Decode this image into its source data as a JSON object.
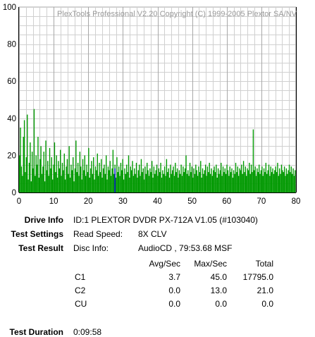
{
  "app": {
    "copyright": "PlexTools Professional V2.20 Copyright (C) 1999-2005 Plextor SA/NV"
  },
  "chart_data": {
    "type": "bar",
    "xlim": [
      0,
      80
    ],
    "ylim": [
      0,
      100
    ],
    "x_ticks": [
      0,
      10,
      20,
      30,
      40,
      50,
      60,
      70,
      80
    ],
    "y_ticks": [
      0,
      20,
      40,
      60,
      80,
      100
    ],
    "grid": true,
    "series": [
      {
        "color": "#009900",
        "values": [
          20,
          35,
          14,
          9,
          30,
          39,
          11,
          19,
          42,
          7,
          16,
          27,
          6,
          22,
          13,
          45,
          9,
          20,
          15,
          30,
          8,
          18,
          25,
          10,
          14,
          22,
          6,
          28,
          12,
          17,
          9,
          24,
          13,
          19,
          7,
          15,
          27,
          11,
          20,
          8,
          17,
          13,
          23,
          9,
          16,
          12,
          21,
          7,
          14,
          18,
          10,
          25,
          8,
          15,
          12,
          19,
          6,
          13,
          28,
          11,
          16,
          9,
          22,
          14,
          7,
          18,
          12,
          20,
          9,
          15,
          11,
          24,
          8,
          13,
          17,
          10,
          19,
          7,
          14,
          12,
          21,
          9,
          16,
          11,
          18,
          8,
          13,
          15,
          10,
          20,
          7,
          14,
          12,
          17,
          9,
          13,
          23,
          10,
          15,
          8,
          19,
          11,
          14,
          9,
          16,
          12,
          18,
          7,
          13,
          10,
          15,
          11,
          20,
          8,
          14,
          12,
          17,
          9,
          13,
          10,
          16,
          8,
          12,
          15,
          9,
          18,
          11,
          13,
          7,
          14,
          10,
          16,
          12,
          9,
          13,
          11,
          17,
          8,
          14,
          10,
          12,
          15,
          9,
          13,
          11,
          16,
          8,
          12,
          10,
          14,
          9,
          18,
          11,
          13,
          8,
          15,
          10,
          12,
          14,
          9,
          16,
          11,
          13,
          8,
          12,
          10,
          15,
          9,
          14,
          11,
          13,
          20,
          10,
          12,
          9,
          16,
          11,
          14,
          8,
          13,
          10,
          15,
          12,
          9,
          14,
          11,
          17,
          8,
          13,
          10,
          12,
          15,
          9,
          14,
          11,
          16,
          10,
          13,
          9,
          12,
          14,
          11,
          15,
          8,
          13,
          10,
          12,
          16,
          9,
          14,
          11,
          13,
          10,
          15,
          12,
          9,
          14,
          11,
          13,
          8,
          12,
          10,
          16,
          11,
          14,
          9,
          13,
          12,
          15,
          10,
          17,
          11,
          14,
          9,
          13,
          12,
          16,
          10,
          15,
          11,
          34,
          12,
          14,
          9,
          13,
          11,
          15,
          10,
          12,
          14,
          9,
          13,
          11,
          16,
          10,
          12,
          15,
          9,
          14,
          11,
          13,
          10,
          12,
          14,
          11,
          16,
          9,
          13,
          10,
          15,
          12,
          11,
          14,
          9,
          13,
          10,
          12,
          15,
          11,
          14,
          10,
          13,
          9,
          12
        ]
      },
      {
        "color": "#0000dd",
        "values": [
          0,
          0,
          0,
          0,
          0,
          0,
          0,
          0,
          0,
          0,
          0,
          0,
          0,
          0,
          0,
          0,
          0,
          0,
          0,
          0,
          0,
          0,
          0,
          0,
          0,
          0,
          0,
          0,
          0,
          0,
          0,
          0,
          0,
          0,
          0,
          0,
          0,
          0,
          0,
          0,
          0,
          0,
          0,
          0,
          0,
          0,
          0,
          0,
          0,
          0,
          0,
          0,
          0,
          0,
          0,
          0,
          0,
          0,
          0,
          0,
          0,
          0,
          0,
          0,
          0,
          0,
          0,
          0,
          0,
          0,
          0,
          0,
          0,
          0,
          0,
          0,
          0,
          0,
          0,
          0,
          0,
          0,
          0,
          0,
          0,
          0,
          0,
          0,
          0,
          0,
          0,
          0,
          0,
          0,
          0,
          0,
          0,
          0,
          13,
          0,
          0,
          0,
          0,
          0,
          0,
          0,
          0,
          0,
          0,
          0,
          0,
          0,
          0,
          0,
          0,
          0,
          0,
          0,
          0,
          0,
          0,
          0,
          0,
          0,
          0,
          0,
          0,
          0,
          0,
          0,
          0,
          0,
          0,
          0,
          0,
          0,
          0,
          0,
          0,
          0,
          0,
          0,
          0,
          0,
          0,
          0,
          0,
          0,
          0,
          0,
          0,
          0,
          0,
          0,
          0,
          0,
          0,
          0,
          0,
          0,
          0,
          0,
          0,
          0,
          0,
          0,
          0,
          0,
          0,
          0,
          0,
          0,
          0,
          0,
          0,
          0,
          0,
          0,
          0,
          0,
          0,
          0,
          0,
          0,
          0,
          0,
          0,
          0,
          0,
          0,
          0,
          0,
          0,
          0,
          0,
          0,
          0,
          0,
          0,
          0,
          0,
          0,
          0,
          0,
          0,
          0,
          0,
          0,
          0,
          0,
          0,
          0,
          0,
          0,
          0,
          0,
          0,
          0,
          0,
          0,
          0,
          0,
          0,
          0,
          0,
          0,
          0,
          0,
          0,
          0,
          0,
          0,
          0,
          0,
          0,
          0,
          0,
          0,
          0,
          0,
          0,
          0,
          0,
          0,
          0,
          0,
          0,
          0,
          0,
          0,
          0,
          0,
          0,
          0,
          0,
          0,
          0,
          0,
          0,
          0,
          0,
          0,
          0,
          0,
          0,
          0,
          0,
          0,
          0,
          0,
          0,
          0,
          0,
          0,
          0,
          0,
          0,
          0,
          0,
          0,
          0,
          0,
          0,
          0,
          0,
          0,
          0,
          0,
          0,
          0,
          0,
          0,
          0
        ]
      }
    ],
    "x_end": 79.9,
    "end_marker_color": "#000000"
  },
  "info": {
    "drive_label": "Drive Info",
    "drive_value": "ID:1 PLEXTOR DVDR PX-712A V1.05 (#103040)",
    "settings_label": "Test Settings",
    "settings_key": "Read Speed:",
    "settings_value": "8X CLV",
    "result_label": "Test Result",
    "result_key": "Disc Info:",
    "result_value": "AudioCD , 79:53.68 MSF",
    "col_headers": [
      "Avg/Sec",
      "Max/Sec",
      "Total"
    ],
    "rows": [
      {
        "name": "C1",
        "avg": "3.7",
        "max": "45.0",
        "total": "17795.0"
      },
      {
        "name": "C2",
        "avg": "0.0",
        "max": "13.0",
        "total": "21.0"
      },
      {
        "name": "CU",
        "avg": "0.0",
        "max": "0.0",
        "total": "0.0"
      }
    ],
    "duration_label": "Test Duration",
    "duration_value": "0:09:58"
  }
}
